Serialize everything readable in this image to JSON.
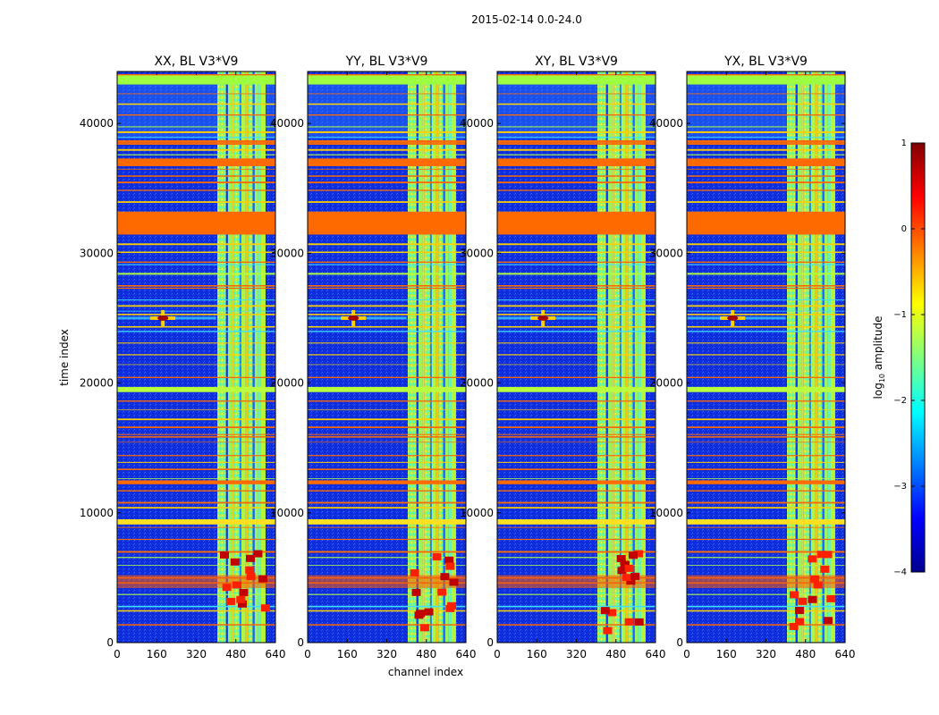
{
  "chart_data": {
    "type": "heatmap",
    "suptitle": "2015-02-14 0.0-24.0",
    "xlabel": "channel index",
    "ylabel": "time index",
    "xlim": [
      0,
      640
    ],
    "ylim": [
      0,
      44000
    ],
    "xticks": [
      0,
      160,
      320,
      480,
      640
    ],
    "yticks": [
      0,
      10000,
      20000,
      30000,
      40000
    ],
    "panels": [
      {
        "title": "XX, BL V3*V9"
      },
      {
        "title": "YY, BL V3*V9"
      },
      {
        "title": "XY, BL V3*V9"
      },
      {
        "title": "YX, BL V3*V9"
      }
    ],
    "colorbar": {
      "label_main": "log",
      "label_sub": "10",
      "label_rest": " amplitude",
      "range": [
        -4,
        1
      ],
      "ticks": [
        1,
        0,
        -1,
        -2,
        -3,
        -4
      ],
      "tick_labels": [
        "1",
        "0",
        "−1",
        "−2",
        "−3",
        "−4"
      ],
      "colormap": "jet"
    },
    "features": {
      "rfi_channel_band": [
        405,
        600
      ],
      "bright_source_channel": 185,
      "bright_source_time": 25000,
      "saturated_time_bands": [
        [
          31500,
          33200
        ],
        [
          36800,
          37300
        ],
        [
          43000,
          43800
        ],
        [
          4200,
          5200
        ]
      ]
    }
  }
}
